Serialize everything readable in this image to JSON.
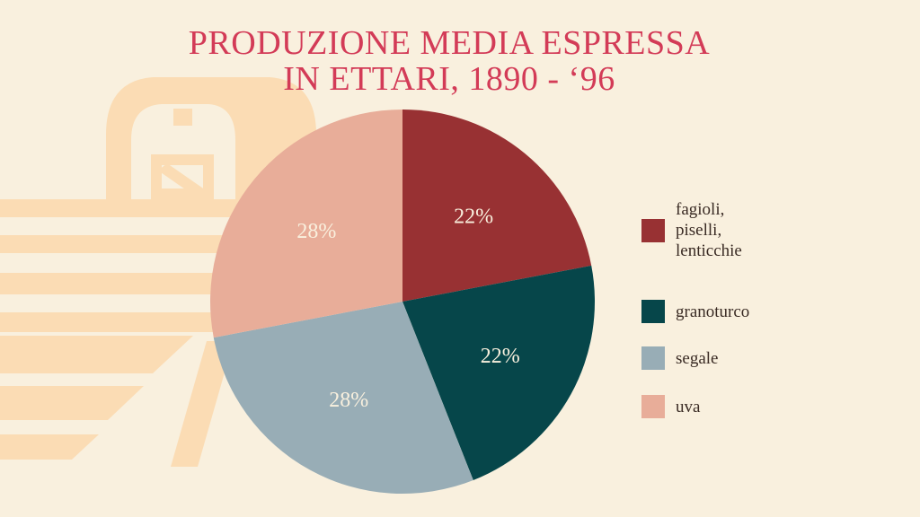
{
  "title": {
    "line1": "PRODUZIONE MEDIA ESPRESSA",
    "line2": "IN ETTARI, 1890 - ‘96"
  },
  "background": {
    "color": "#f9f0de",
    "decoration_color": "#fbdcb4",
    "decoration_icon": "barn-icon"
  },
  "chart_data": {
    "type": "pie",
    "title": "PRODUZIONE MEDIA ESPRESSA IN ETTARI, 1890 - ‘96",
    "start_angle_deg": 0,
    "direction": "clockwise",
    "slices": [
      {
        "label": "fagioli, piselli, lenticchie",
        "legend_lines": [
          "fagioli,",
          "piselli,",
          "lenticchie"
        ],
        "value": 22,
        "display": "22%",
        "color": "#983133"
      },
      {
        "label": "granoturco",
        "legend_lines": [
          "granoturco"
        ],
        "value": 22,
        "display": "22%",
        "color": "#06464a"
      },
      {
        "label": "segale",
        "legend_lines": [
          "segale"
        ],
        "value": 28,
        "display": "28%",
        "color": "#98adb6"
      },
      {
        "label": "uva",
        "legend_lines": [
          "uva"
        ],
        "value": 28,
        "display": "28%",
        "color": "#e8ad99"
      }
    ],
    "label_color": "#f9f0de",
    "legend_position": "right"
  }
}
